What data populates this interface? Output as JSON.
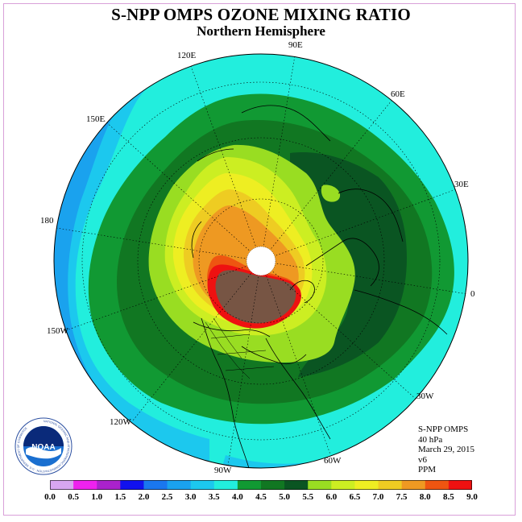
{
  "title": "S-NPP OMPS OZONE MIXING RATIO",
  "subtitle": "Northern Hemisphere",
  "longitude_labels": [
    {
      "name": "lon-90e",
      "text": "90E"
    },
    {
      "name": "lon-60e",
      "text": "60E"
    },
    {
      "name": "lon-30e",
      "text": "30E"
    },
    {
      "name": "lon-0",
      "text": "0"
    },
    {
      "name": "lon-30w",
      "text": "30W"
    },
    {
      "name": "lon-60w",
      "text": "60W"
    },
    {
      "name": "lon-90w",
      "text": "90W"
    },
    {
      "name": "lon-120w",
      "text": "120W"
    },
    {
      "name": "lon-150w",
      "text": "150W"
    },
    {
      "name": "lon-180",
      "text": "180"
    },
    {
      "name": "lon-150e",
      "text": "150E"
    },
    {
      "name": "lon-120e",
      "text": "120E"
    }
  ],
  "info": {
    "instrument": "S-NPP OMPS",
    "level": "40 hPa",
    "date": "March 29, 2015",
    "version": "v6",
    "units": "PPM"
  },
  "colorbar": {
    "ticks": [
      "0.0",
      "0.5",
      "1.0",
      "1.5",
      "2.0",
      "2.5",
      "3.0",
      "3.5",
      "4.0",
      "4.5",
      "5.0",
      "5.5",
      "6.0",
      "6.5",
      "7.0",
      "7.5",
      "8.0",
      "8.5",
      "9.0"
    ],
    "colors": [
      "#bb77ee",
      "#d7a6f0",
      "#ee22ee",
      "#aa22cc",
      "#1111ee",
      "#1a77ee",
      "#1aa2ee",
      "#1cc8ee",
      "#22eedd",
      "#119933",
      "#117722",
      "#0a5522",
      "#99dd22",
      "#ccee22",
      "#eeee22",
      "#eecc22",
      "#ee9922",
      "#ee5511",
      "#ee1111",
      "#775544"
    ]
  },
  "logo": {
    "text": "NOAA",
    "ring_text": "NATIONAL OCEANIC AND ATMOSPHERIC ADMINISTRATION · U.S. DEPARTMENT OF COMMERCE"
  },
  "map": {
    "projection": "polar stereographic, north pole",
    "ocean_outer_color": "#22bbee",
    "band_colors": {
      "3.0-3.5": "#1cc8ee",
      "3.5-4.0": "#22eedd",
      "4.0-4.5": "#119933",
      "4.5-5.0": "#117722",
      "5.0-5.5": "#0a5522",
      "5.5-6.0": "#99dd22",
      "6.0-6.5": "#ccee22",
      "6.5-7.0": "#eeee22",
      "7.0-7.5": "#eecc22",
      "7.5-8.0": "#ee9922",
      "8.0-8.5": "#ee5511",
      "8.5-9.0": "#ee1111",
      "9.0+": "#775544"
    }
  }
}
